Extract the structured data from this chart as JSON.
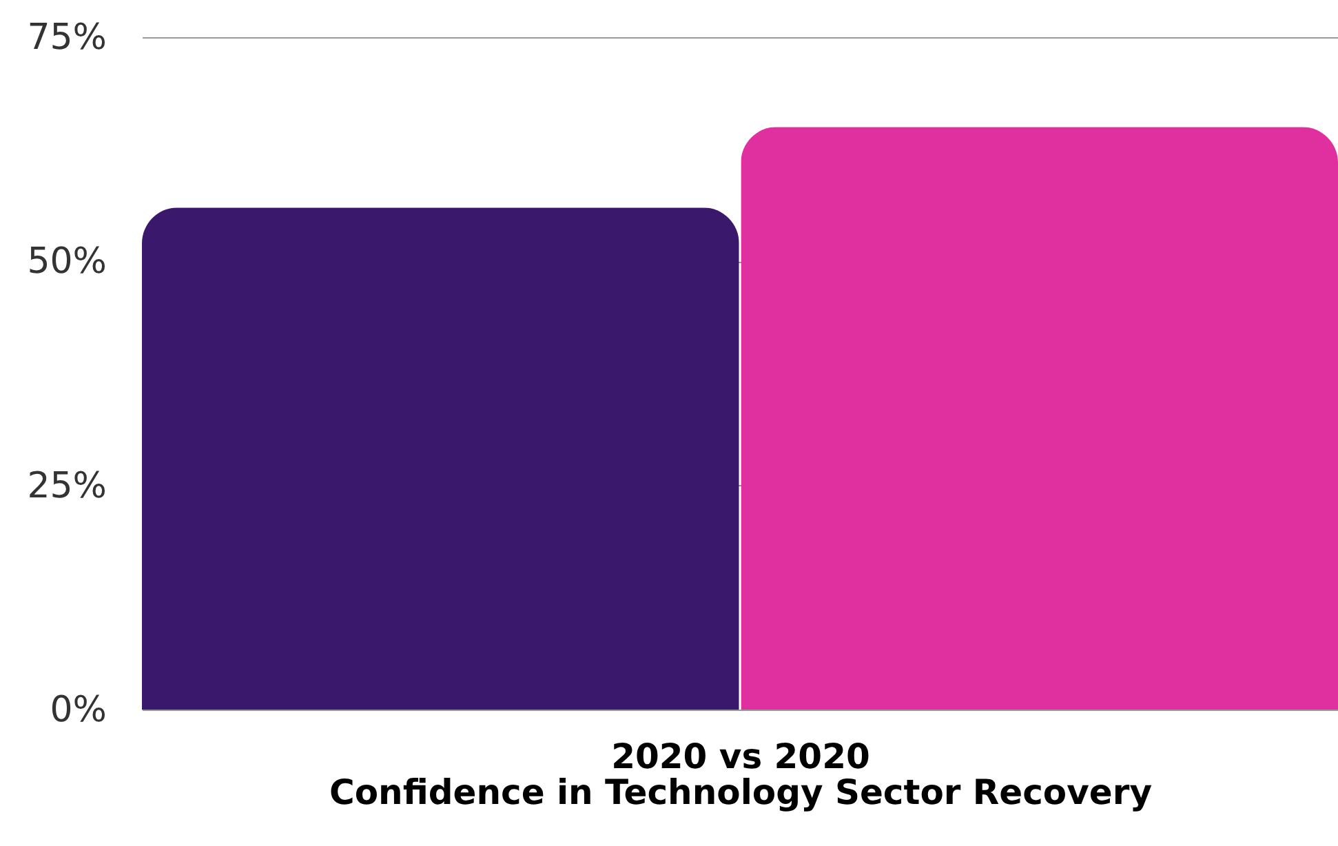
{
  "chart_data": {
    "type": "bar",
    "xlabel": "2020 vs 2020\nConfidence in Technology Sector Recovery",
    "categories": [
      null,
      null
    ],
    "values": [
      56,
      65
    ],
    "colors": [
      "#3a186b",
      "#e02f9f"
    ],
    "ylim": [
      0,
      75
    ],
    "yticks": [
      {
        "value": 0,
        "label": "0%"
      },
      {
        "value": 25,
        "label": "25%"
      },
      {
        "value": 50,
        "label": "50%"
      },
      {
        "value": 75,
        "label": "75%"
      }
    ],
    "grid": "y"
  }
}
